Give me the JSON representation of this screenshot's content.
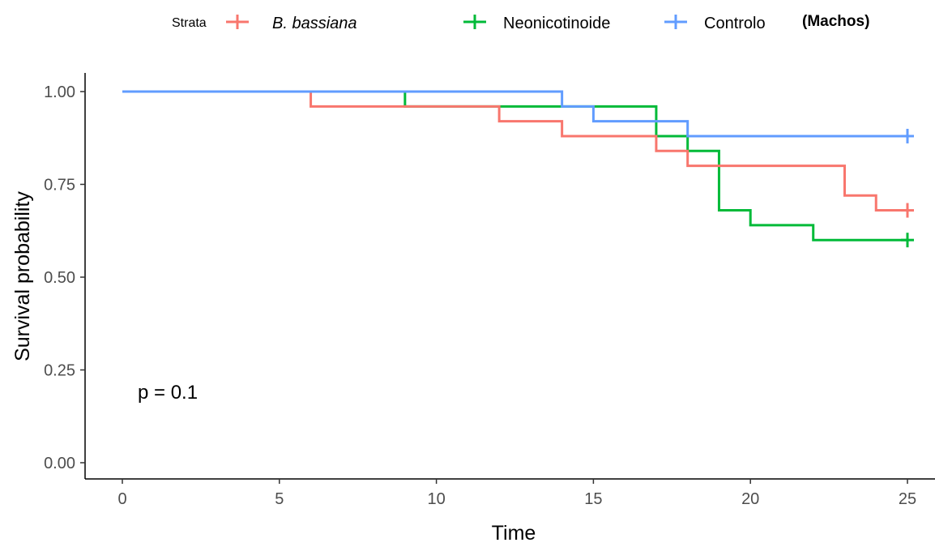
{
  "chart_data": {
    "type": "line",
    "subtitle": "(Machos)",
    "xlabel": "Time",
    "ylabel": "Survival probability",
    "xlim": [
      0,
      25
    ],
    "ylim": [
      0,
      1
    ],
    "xticks": [
      0,
      5,
      10,
      15,
      20,
      25
    ],
    "xtick_labels": [
      "0",
      "5",
      "10",
      "15",
      "20",
      "25"
    ],
    "yticks": [
      0,
      0.25,
      0.5,
      0.75,
      1
    ],
    "ytick_labels": [
      "0.00",
      "0.25",
      "0.50",
      "0.75",
      "1.00"
    ],
    "grid": false,
    "legend": {
      "title": "Strata",
      "placement": "top"
    },
    "annotation": "p = 0.1",
    "series": [
      {
        "name": "B. bassiana",
        "color": "#f8766d",
        "italic": true,
        "x": [
          0,
          6,
          12,
          14,
          17,
          18,
          23,
          24,
          25
        ],
        "y": [
          1.0,
          0.96,
          0.92,
          0.88,
          0.84,
          0.8,
          0.72,
          0.68,
          0.68
        ],
        "censor": [
          [
            25,
            0.68
          ]
        ]
      },
      {
        "name": "Neonicotinoide",
        "color": "#00ba38",
        "italic": false,
        "x": [
          0,
          9,
          17,
          18,
          19,
          20,
          22,
          25
        ],
        "y": [
          1.0,
          0.96,
          0.88,
          0.84,
          0.68,
          0.64,
          0.6,
          0.6
        ],
        "censor": [
          [
            25,
            0.6
          ]
        ]
      },
      {
        "name": "Controlo",
        "color": "#619cff",
        "italic": false,
        "x": [
          0,
          14,
          15,
          18,
          25
        ],
        "y": [
          1.0,
          0.96,
          0.92,
          0.88,
          0.88
        ],
        "censor": [
          [
            25,
            0.88
          ]
        ]
      }
    ]
  }
}
